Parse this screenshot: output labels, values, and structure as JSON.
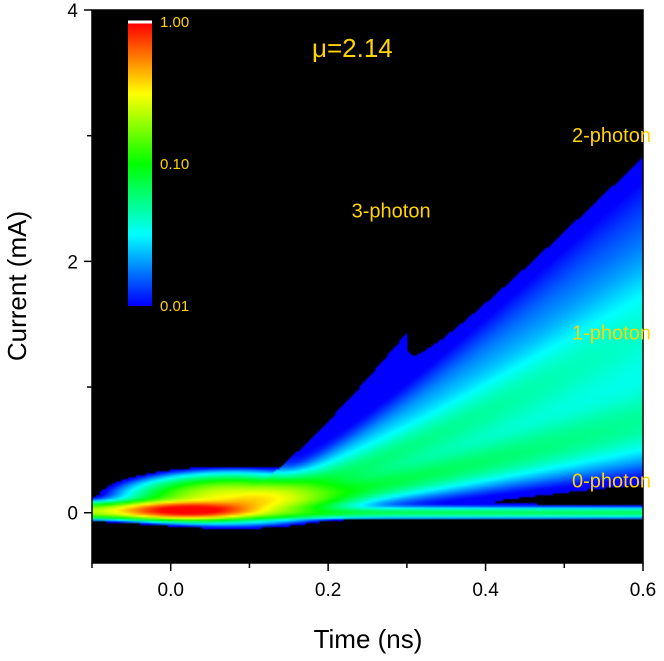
{
  "chart_data": {
    "type": "heatmap",
    "title": "",
    "mu_label": "μ=2.14",
    "xlabel": "Time (ns)",
    "ylabel": "Current (mA)",
    "xlim": [
      -0.1,
      0.6
    ],
    "ylim": [
      -0.4,
      4.0
    ],
    "x_ticks": [
      0.0,
      0.2,
      0.4,
      0.6
    ],
    "x_tick_labels": [
      "0.0",
      "0.2",
      "0.4",
      "0.6"
    ],
    "x_minor_ticks": [
      -0.1,
      0.1,
      0.3,
      0.5
    ],
    "y_ticks": [
      0,
      2,
      4
    ],
    "y_tick_labels": [
      "0",
      "2",
      "4"
    ],
    "y_minor_ticks": [
      1,
      3
    ],
    "colorbar": {
      "scale": "log",
      "ticks": [
        1.0,
        0.1,
        0.01
      ],
      "tick_labels": [
        "1.00",
        "0.10",
        "0.01"
      ],
      "colormap": [
        "#0000ff",
        "#0080ff",
        "#00ffff",
        "#00ff80",
        "#00ff00",
        "#80ff00",
        "#ffff00",
        "#ff8000",
        "#ff0000"
      ]
    },
    "annotations": [
      {
        "text": "3-photon",
        "x": 0.28,
        "y": 2.35
      },
      {
        "text": "2-photon",
        "x": 0.56,
        "y": 2.95
      },
      {
        "text": "1-photon",
        "x": 0.56,
        "y": 1.38
      },
      {
        "text": "0-photon",
        "x": 0.56,
        "y": 0.2
      }
    ],
    "photon_bands": [
      {
        "name": "0-photon",
        "slope": 0.0,
        "intensity": 0.05
      },
      {
        "name": "1-photon",
        "slope": 0.36,
        "intensity": 0.08
      },
      {
        "name": "2-photon",
        "slope": 0.72,
        "intensity": 0.06
      },
      {
        "name": "3-photon",
        "slope": 1.08,
        "intensity": 0.02
      }
    ]
  }
}
